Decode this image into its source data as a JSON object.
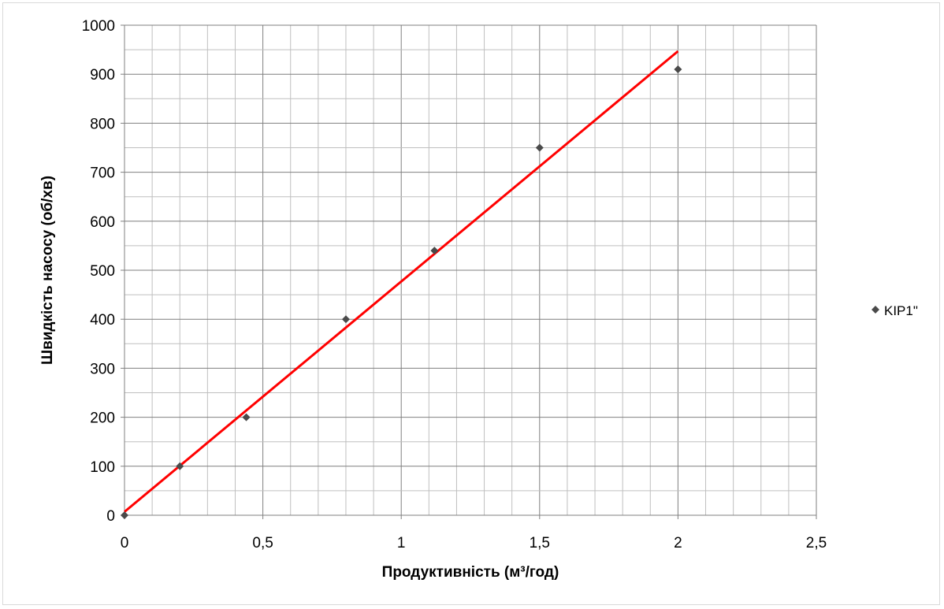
{
  "chart_data": {
    "type": "scatter",
    "title": "",
    "xlabel": "Продуктивність (м³/год)",
    "ylabel": "Швидкість насосу (об/хв)",
    "xlim": [
      0,
      2.5
    ],
    "ylim": [
      0,
      1000
    ],
    "x_ticks": [
      "0",
      "0,5",
      "1",
      "1,5",
      "2",
      "2,5"
    ],
    "y_ticks": [
      "0",
      "100",
      "200",
      "300",
      "400",
      "500",
      "600",
      "700",
      "800",
      "900",
      "1000"
    ],
    "grid": true,
    "legend_position": "right",
    "series": [
      {
        "name": "KIP1\"",
        "marker": "diamond",
        "color": "#4a4a4a",
        "x": [
          0,
          0.2,
          0.44,
          0.8,
          1.12,
          1.5,
          2.0
        ],
        "y": [
          0,
          100,
          200,
          400,
          540,
          750,
          910
        ]
      }
    ],
    "trendline": {
      "type": "linear",
      "color": "#ff0000",
      "x": [
        0,
        2.0
      ],
      "y": [
        7,
        947
      ]
    },
    "colors": {
      "grid_major": "#7f7f7f",
      "grid_minor": "#bfbfbf",
      "axis": "#808080"
    }
  }
}
